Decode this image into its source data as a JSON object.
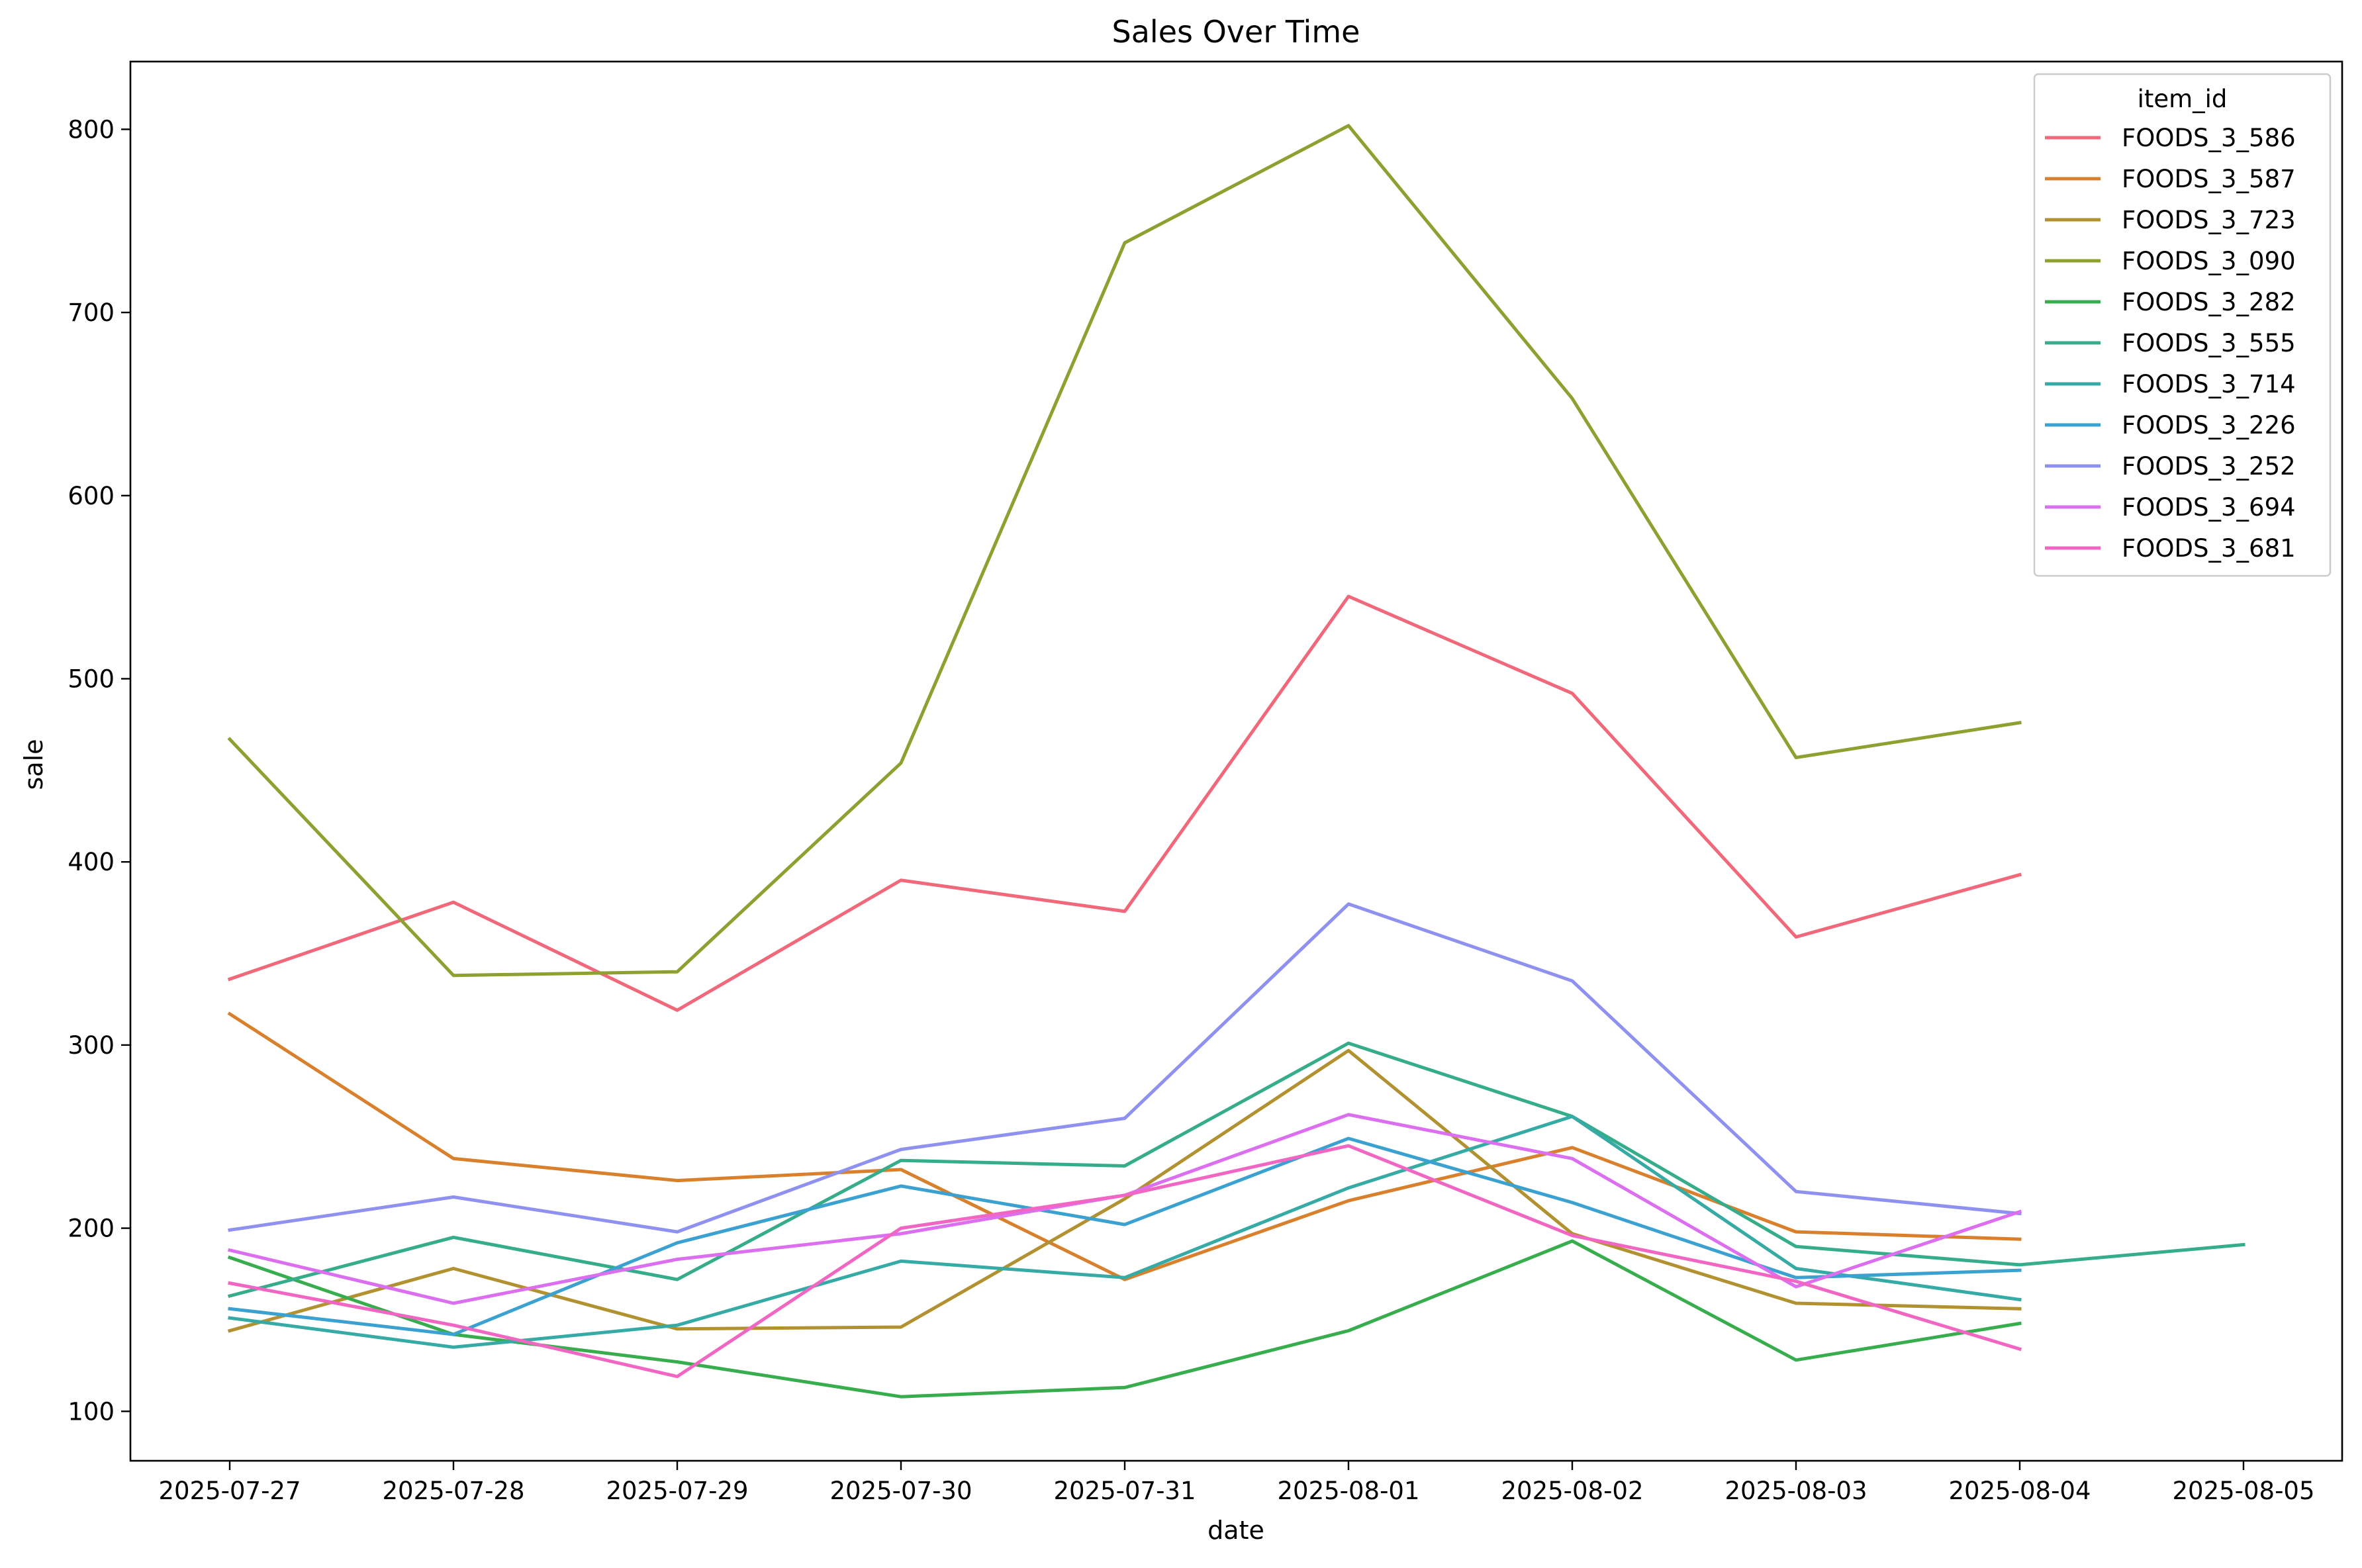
{
  "chart_data": {
    "type": "line",
    "title": "Sales Over Time",
    "xlabel": "date",
    "ylabel": "sale",
    "x": [
      "2025-07-27",
      "2025-07-28",
      "2025-07-29",
      "2025-07-30",
      "2025-07-31",
      "2025-08-01",
      "2025-08-02",
      "2025-08-03",
      "2025-08-04",
      "2025-08-05"
    ],
    "y_ticks": [
      100,
      200,
      300,
      400,
      500,
      600,
      700,
      800
    ],
    "ylim": [
      73,
      837
    ],
    "grid": false,
    "legend": {
      "title": "item_id",
      "placement": "top-right"
    },
    "series": [
      {
        "name": "FOODS_3_586",
        "color": "#f0687a",
        "values": [
          336,
          378,
          319,
          390,
          373,
          545,
          492,
          359,
          393,
          null
        ]
      },
      {
        "name": "FOODS_3_587",
        "color": "#d9802c",
        "values": [
          317,
          238,
          226,
          232,
          172,
          215,
          244,
          198,
          194,
          null
        ]
      },
      {
        "name": "FOODS_3_723",
        "color": "#b29130",
        "values": [
          144,
          178,
          145,
          146,
          216,
          297,
          197,
          159,
          156,
          null
        ]
      },
      {
        "name": "FOODS_3_090",
        "color": "#8ea030",
        "values": [
          467,
          338,
          340,
          454,
          738,
          802,
          653,
          457,
          476,
          null
        ]
      },
      {
        "name": "FOODS_3_282",
        "color": "#38ad4e",
        "values": [
          184,
          142,
          127,
          108,
          113,
          144,
          193,
          128,
          148,
          null
        ]
      },
      {
        "name": "FOODS_3_555",
        "color": "#35ac8a",
        "values": [
          163,
          195,
          172,
          237,
          234,
          301,
          261,
          190,
          180,
          191
        ]
      },
      {
        "name": "FOODS_3_714",
        "color": "#36aaa4",
        "values": [
          151,
          135,
          147,
          182,
          173,
          222,
          261,
          178,
          161,
          null
        ]
      },
      {
        "name": "FOODS_3_226",
        "color": "#3aa1d0",
        "values": [
          156,
          142,
          192,
          223,
          202,
          249,
          214,
          173,
          177,
          null
        ]
      },
      {
        "name": "FOODS_3_252",
        "color": "#8f91f0",
        "values": [
          199,
          217,
          198,
          243,
          260,
          377,
          335,
          220,
          208,
          null
        ]
      },
      {
        "name": "FOODS_3_694",
        "color": "#dc6ef0",
        "values": [
          188,
          159,
          183,
          197,
          218,
          262,
          238,
          168,
          209,
          null
        ]
      },
      {
        "name": "FOODS_3_681",
        "color": "#f266c3",
        "values": [
          170,
          147,
          119,
          200,
          218,
          245,
          196,
          171,
          134,
          null
        ]
      }
    ]
  }
}
